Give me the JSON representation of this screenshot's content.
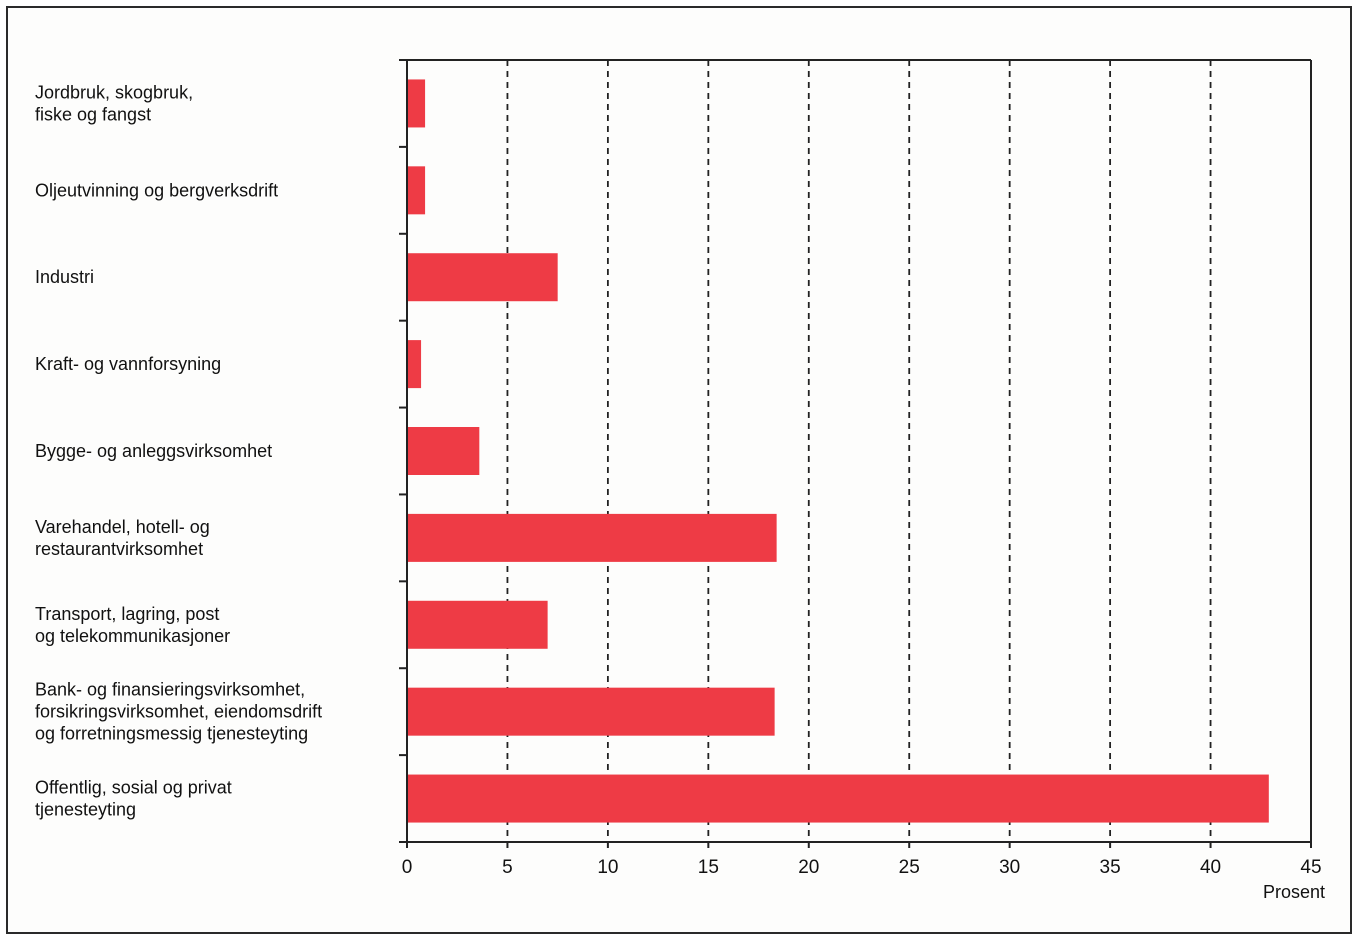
{
  "chart_data": {
    "type": "bar",
    "orientation": "horizontal",
    "categories": [
      "Jordbruk, skogbruk,\nfiske og fangst",
      "Oljeutvinning og bergverksdrift",
      "Industri",
      "Kraft- og vannforsyning",
      "Bygge- og anleggsvirksomhet",
      "Varehandel, hotell- og\nrestaurantvirksomhet",
      "Transport, lagring, post\nog telekommunikasjoner",
      "Bank- og finansieringsvirksomhet,\nforsikringsvirksomhet, eiendomsdrift\nog forretningsmessig tjenesteyting",
      "Offentlig, sosial og privat\ntjenesteyting"
    ],
    "values": [
      0.9,
      0.9,
      7.5,
      0.7,
      3.6,
      18.4,
      7.0,
      18.3,
      42.9
    ],
    "xlabel": "Prosent",
    "ylabel": "",
    "xlim": [
      0,
      45
    ],
    "xticks": [
      "0",
      "5",
      "10",
      "15",
      "20",
      "25",
      "30",
      "35",
      "40",
      "45"
    ],
    "grid": "vertical-dashed",
    "bar_color": "#ee3b45"
  }
}
